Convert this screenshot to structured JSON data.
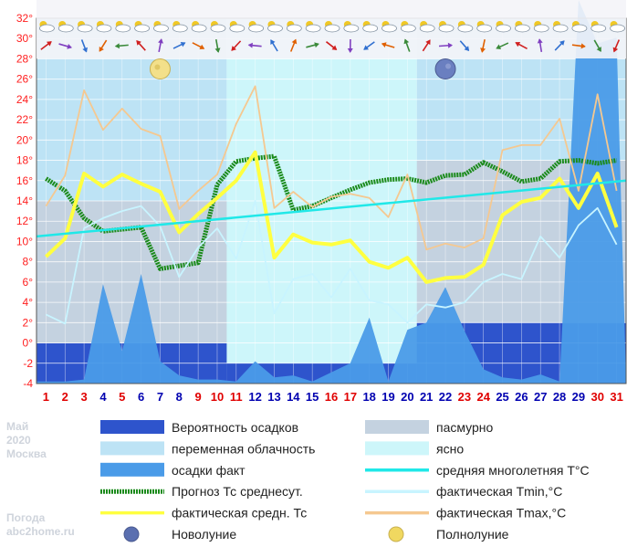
{
  "chart_data": {
    "type": "line",
    "xlim": [
      1,
      31
    ],
    "ylim": [
      -4,
      32
    ],
    "y_ticks": [
      "-4",
      "-2",
      "0°",
      "2°",
      "4°",
      "6°",
      "8°",
      "10°",
      "12°",
      "14°",
      "16°",
      "18°",
      "20°",
      "22°",
      "24°",
      "26°",
      "28°",
      "30°",
      "32°"
    ],
    "x_ticks": [
      {
        "label": "1",
        "weekend": true
      },
      {
        "label": "2",
        "weekend": true
      },
      {
        "label": "3",
        "weekend": true
      },
      {
        "label": "4",
        "weekend": false
      },
      {
        "label": "5",
        "weekend": true
      },
      {
        "label": "6",
        "weekend": false
      },
      {
        "label": "7",
        "weekend": false
      },
      {
        "label": "8",
        "weekend": false
      },
      {
        "label": "9",
        "weekend": true
      },
      {
        "label": "10",
        "weekend": true
      },
      {
        "label": "11",
        "weekend": true
      },
      {
        "label": "12",
        "weekend": false
      },
      {
        "label": "13",
        "weekend": false
      },
      {
        "label": "14",
        "weekend": false
      },
      {
        "label": "15",
        "weekend": false
      },
      {
        "label": "16",
        "weekend": true
      },
      {
        "label": "17",
        "weekend": true
      },
      {
        "label": "18",
        "weekend": false
      },
      {
        "label": "19",
        "weekend": false
      },
      {
        "label": "20",
        "weekend": false
      },
      {
        "label": "21",
        "weekend": false
      },
      {
        "label": "22",
        "weekend": false
      },
      {
        "label": "23",
        "weekend": true
      },
      {
        "label": "24",
        "weekend": true
      },
      {
        "label": "25",
        "weekend": false
      },
      {
        "label": "26",
        "weekend": false
      },
      {
        "label": "27",
        "weekend": false
      },
      {
        "label": "28",
        "weekend": false
      },
      {
        "label": "29",
        "weekend": false
      },
      {
        "label": "30",
        "weekend": true
      },
      {
        "label": "31",
        "weekend": true
      }
    ],
    "cloud_bands": [
      {
        "from": 0.5,
        "to": 10.5,
        "type": "переменная облачность"
      },
      {
        "from": 10.5,
        "to": 20.5,
        "type": "ясно"
      },
      {
        "from": 20.5,
        "to": 31.5,
        "type": "переменная облачность"
      }
    ],
    "overcast_bands": [
      {
        "from": 0.5,
        "to": 10.5,
        "top": 14
      },
      {
        "from": 20.5,
        "to": 31.5,
        "top": 18
      }
    ],
    "precip_probability": [
      {
        "from": 0.5,
        "to": 10.5,
        "top": 0
      },
      {
        "from": 10.5,
        "to": 20.5,
        "top": -2
      },
      {
        "from": 20.5,
        "to": 31.5,
        "top": 2
      }
    ],
    "moon_phases": [
      {
        "day": 7,
        "value": 27,
        "phase": "Полнолуние"
      },
      {
        "day": 22,
        "value": 27,
        "phase": "Новолуние"
      }
    ],
    "series": [
      {
        "name": "осадки факт",
        "color": "#4a9be8",
        "type": "area",
        "x": [
          0.5,
          1,
          2,
          3,
          4,
          5,
          6,
          7,
          8,
          9,
          10,
          11,
          12,
          13,
          14,
          15,
          16,
          17,
          18,
          19,
          20,
          21,
          22,
          23,
          24,
          25,
          26,
          27,
          28,
          29,
          30,
          31,
          31.5
        ],
        "y": [
          -3.8,
          -3.8,
          -3.8,
          -3.6,
          5.8,
          -0.8,
          6.8,
          -1.8,
          -3.2,
          -3.6,
          -3.6,
          -3.8,
          -1.8,
          -3.4,
          -3.2,
          -3.8,
          -2.9,
          -2.0,
          2.5,
          -3.8,
          1.3,
          2.0,
          5.5,
          1.2,
          -2.6,
          -3.4,
          -3.6,
          -3.1,
          -3.8,
          33.8,
          29.5,
          30.1,
          -3.8
        ]
      },
      {
        "name": "Прогноз Тс среднесут.",
        "color": "#1a8a1a",
        "type": "line",
        "x": [
          1,
          2,
          3,
          4,
          5,
          6,
          7,
          8,
          9,
          10,
          11,
          12,
          13,
          14,
          15,
          16,
          17,
          18,
          19,
          20,
          21,
          22,
          23,
          24,
          25,
          26,
          27,
          28,
          29,
          30,
          31
        ],
        "y": [
          16.2,
          15.0,
          12.3,
          11.0,
          11.2,
          11.4,
          7.3,
          7.6,
          7.9,
          15.6,
          17.9,
          18.2,
          18.4,
          13.1,
          13.5,
          14.3,
          15.1,
          15.8,
          16.1,
          16.2,
          15.8,
          16.5,
          16.6,
          17.8,
          16.9,
          15.9,
          16.2,
          17.9,
          18.0,
          17.7,
          18.0
        ]
      },
      {
        "name": "фактическая средн. Тс",
        "color": "#ffff40",
        "type": "line",
        "x": [
          1,
          2,
          3,
          4,
          5,
          6,
          7,
          8,
          9,
          10,
          11,
          12,
          13,
          14,
          15,
          16,
          17,
          18,
          19,
          20,
          21,
          22,
          23,
          24,
          25,
          26,
          27,
          28,
          29,
          30,
          31
        ],
        "y": [
          8.5,
          10.3,
          16.7,
          15.4,
          16.6,
          15.7,
          14.9,
          10.9,
          12.7,
          14.3,
          16.0,
          18.8,
          8.4,
          10.7,
          9.9,
          9.7,
          10.1,
          8.0,
          7.4,
          8.4,
          6.0,
          6.4,
          6.5,
          7.7,
          12.6,
          13.9,
          14.3,
          16.2,
          13.3,
          16.7,
          11.4
        ]
      },
      {
        "name": "фактическая Tmin,°C",
        "color": "#c8f4ff",
        "type": "line",
        "x": [
          1,
          2,
          3,
          4,
          5,
          6,
          7,
          8,
          9,
          10,
          11,
          12,
          13,
          14,
          15,
          16,
          17,
          18,
          19,
          20,
          21,
          22,
          23,
          24,
          25,
          26,
          27,
          28,
          29,
          30,
          31
        ],
        "y": [
          2.8,
          1.9,
          11.3,
          12.3,
          13.0,
          13.5,
          11.5,
          6.5,
          9.4,
          11.3,
          8.3,
          14.0,
          2.9,
          6.3,
          6.8,
          4.5,
          7.3,
          4.2,
          3.8,
          2.0,
          3.8,
          3.5,
          4.0,
          6.0,
          6.8,
          6.3,
          10.5,
          8.4,
          11.6,
          13.3,
          9.7
        ]
      },
      {
        "name": "фактическая Tmax,°C",
        "color": "#f5c890",
        "type": "line",
        "x": [
          1,
          2,
          3,
          4,
          5,
          6,
          7,
          8,
          9,
          10,
          11,
          12,
          13,
          14,
          15,
          16,
          17,
          18,
          19,
          20,
          21,
          22,
          23,
          24,
          25,
          26,
          27,
          28,
          29,
          30,
          31
        ],
        "y": [
          13.5,
          16.5,
          24.9,
          21.0,
          23.1,
          21.1,
          20.4,
          13.2,
          15.0,
          16.6,
          21.6,
          25.3,
          13.3,
          14.9,
          13.4,
          14.4,
          14.7,
          14.3,
          12.4,
          16.6,
          9.2,
          9.8,
          9.4,
          10.3,
          19.0,
          19.5,
          19.5,
          22.1,
          15.0,
          24.5,
          15.0
        ]
      },
      {
        "name": "средняя многолетняя T°C",
        "color": "#20e8e8",
        "type": "line",
        "x": [
          0.5,
          31.5
        ],
        "y": [
          10.5,
          16.0
        ]
      }
    ]
  },
  "legend": {
    "left": [
      {
        "label": "Вероятность осадков",
        "key": "swatch",
        "color": "#2e54cc"
      },
      {
        "label": "переменная облачность",
        "key": "swatch",
        "color": "#bde3f5"
      },
      {
        "label": "осадки факт",
        "key": "swatch",
        "color": "#4a9be8"
      },
      {
        "label": "Прогноз Тс среднесут.",
        "key": "dashed",
        "color": "#1a8a1a"
      },
      {
        "label": "фактическая средн. Тс",
        "key": "line",
        "color": "#ffff40"
      },
      {
        "label": "Новолуние",
        "key": "newmoon",
        "color": "#5a6fb0"
      }
    ],
    "right": [
      {
        "label": "пасмурно",
        "key": "swatch",
        "color": "#c4d2e0"
      },
      {
        "label": "ясно",
        "key": "swatch",
        "color": "#cdf6fa"
      },
      {
        "label": "средняя многолетняя T°C",
        "key": "line",
        "color": "#20e8e8"
      },
      {
        "label": "фактическая Tmin,°C",
        "key": "line",
        "color": "#c8f4ff"
      },
      {
        "label": "фактическая Tmax,°C",
        "key": "line",
        "color": "#f5c890"
      },
      {
        "label": "Полнолуние",
        "key": "fullmoon",
        "color": "#f0d860"
      }
    ]
  },
  "meta": {
    "month": "Май",
    "year": "2020",
    "city": "Москва",
    "brand1": "Погода",
    "brand2": "abc2home.ru"
  },
  "colors": {
    "weekend": "#e00000",
    "weekday": "#0000b0",
    "axis_labels": "#ff2020",
    "grid": "#ffffff"
  }
}
